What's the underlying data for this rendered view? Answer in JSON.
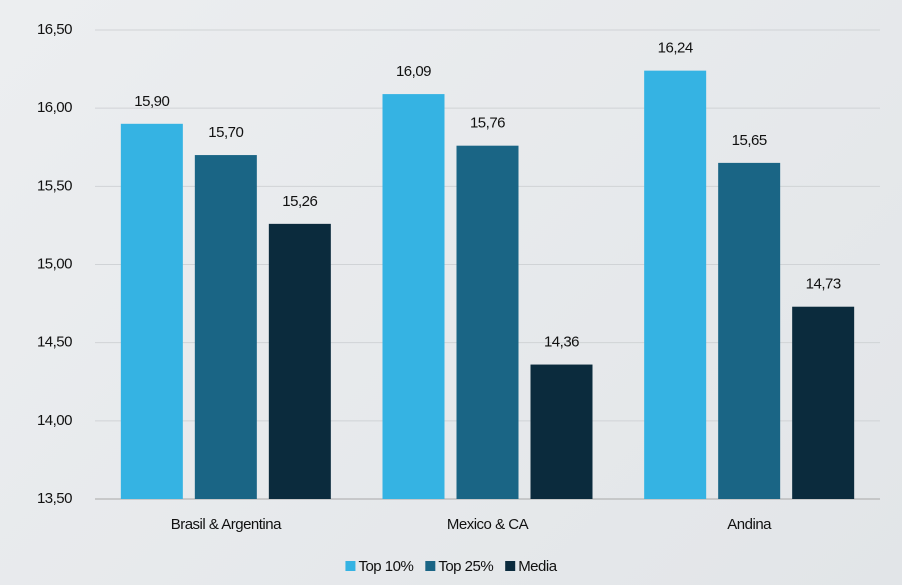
{
  "chart_data": {
    "type": "bar",
    "categories": [
      "Brasil & Argentina",
      "Mexico & CA",
      "Andina"
    ],
    "series": [
      {
        "name": "Top 10%",
        "color": "#35b3e3",
        "values": [
          15.9,
          16.09,
          16.24
        ],
        "value_labels": [
          "15,90",
          "16,09",
          "16,24"
        ]
      },
      {
        "name": "Top 25%",
        "color": "#1a6585",
        "values": [
          15.7,
          15.76,
          15.65
        ],
        "value_labels": [
          "15,70",
          "15,76",
          "15,65"
        ]
      },
      {
        "name": "Media",
        "color": "#0b2b3d",
        "values": [
          15.26,
          14.36,
          14.73
        ],
        "value_labels": [
          "15,26",
          "14,36",
          "14,73"
        ]
      }
    ],
    "ylim": [
      13.5,
      16.5
    ],
    "yticks": [
      {
        "value": 13.5,
        "label": "13,50"
      },
      {
        "value": 14,
        "label": "14,00"
      },
      {
        "value": 14.5,
        "label": "14,50"
      },
      {
        "value": 15,
        "label": "15,00"
      },
      {
        "value": 15.5,
        "label": "15,50"
      },
      {
        "value": 16,
        "label": "16,00"
      },
      {
        "value": 16.5,
        "label": "16,50"
      }
    ],
    "grid": true,
    "legend": "bottom"
  }
}
